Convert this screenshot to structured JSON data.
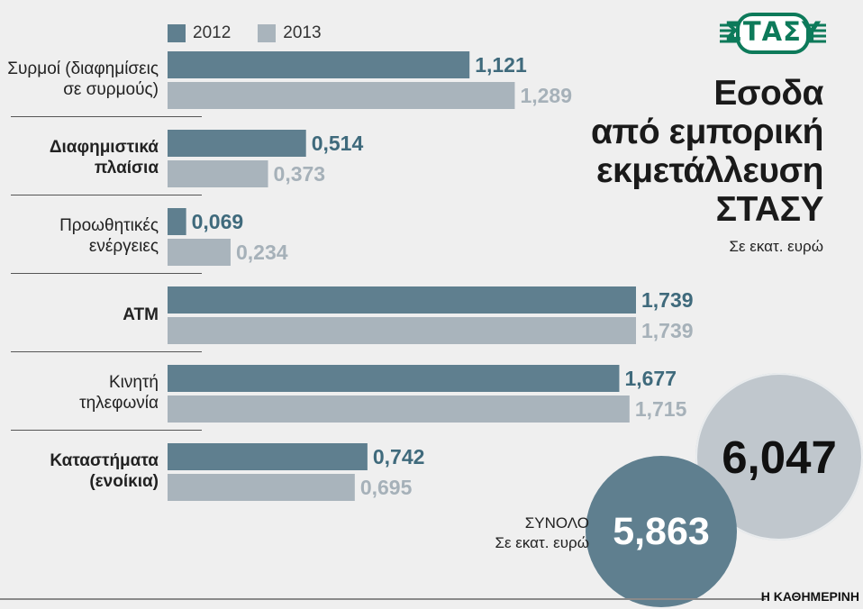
{
  "chart_data": {
    "type": "bar",
    "orientation": "horizontal",
    "title": "Εσοδα από εμπορική εκμετάλλευση ΣΤΑΣΥ",
    "subtitle": "Σε εκατ. ευρώ",
    "categories": [
      {
        "lines": [
          "Συρμοί (διαφημίσεις",
          "σε συρμούς)"
        ],
        "bold": false
      },
      {
        "lines": [
          "Διαφημιστικά",
          "πλαίσια"
        ],
        "bold": true
      },
      {
        "lines": [
          "Προωθητικές",
          "ενέργειες"
        ],
        "bold": false
      },
      {
        "lines": [
          "ATM"
        ],
        "bold": true
      },
      {
        "lines": [
          "Κινητή",
          "τηλεφωνία"
        ],
        "bold": false
      },
      {
        "lines": [
          "Καταστήματα",
          "(ενοίκια)"
        ],
        "bold": true
      }
    ],
    "series": [
      {
        "name": "2012",
        "color": "#5f7f8f",
        "values": [
          1.121,
          0.514,
          0.069,
          1.739,
          1.677,
          0.742
        ],
        "labels": [
          "1,121",
          "0,514",
          "0,069",
          "1,739",
          "1,677",
          "0,742"
        ]
      },
      {
        "name": "2013",
        "color": "#a9b4bc",
        "values": [
          1.289,
          0.373,
          0.234,
          1.739,
          1.715,
          0.695
        ],
        "labels": [
          "1,289",
          "0,373",
          "0,234",
          "1,739",
          "1,715",
          "0,695"
        ]
      }
    ],
    "xlim": [
      0,
      1.739
    ],
    "grid": false,
    "legend": "top-left"
  },
  "totals": {
    "label": "ΣΥΝΟΛΟ",
    "unit": "Σε εκατ. ευρώ",
    "value_2012": "5,863",
    "value_2013": "6,047"
  },
  "logo": {
    "text": "ΣΤΑΣΥ",
    "color": "#0d7a5a"
  },
  "source": "Η ΚΑΘΗΜΕΡΙΝΗ"
}
